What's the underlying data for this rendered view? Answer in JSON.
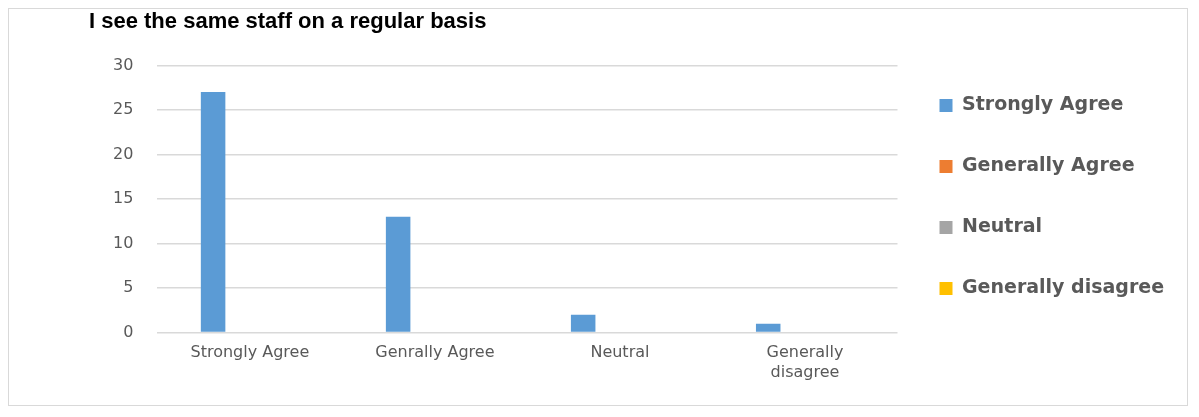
{
  "chart_data": {
    "type": "bar",
    "title": "I see the same staff on a regular basis",
    "categories": [
      "Strongly Agree",
      "Genrally Agree",
      "Neutral",
      "Generally disagree"
    ],
    "series": [
      {
        "name": "Strongly Agree",
        "color": "#5b9bd5",
        "values": [
          27,
          13,
          2,
          1
        ]
      },
      {
        "name": "Generally Agree",
        "color": "#ed7d31",
        "values": [
          null,
          null,
          null,
          null
        ]
      },
      {
        "name": "Neutral",
        "color": "#a5a5a5",
        "values": [
          null,
          null,
          null,
          null
        ]
      },
      {
        "name": "Generally disagree",
        "color": "#ffc000",
        "values": [
          null,
          null,
          null,
          null
        ]
      }
    ],
    "ylim": [
      0,
      30
    ],
    "yticks": [
      0,
      5,
      10,
      15,
      20,
      25,
      30
    ],
    "grid": "y",
    "legend": "right"
  }
}
